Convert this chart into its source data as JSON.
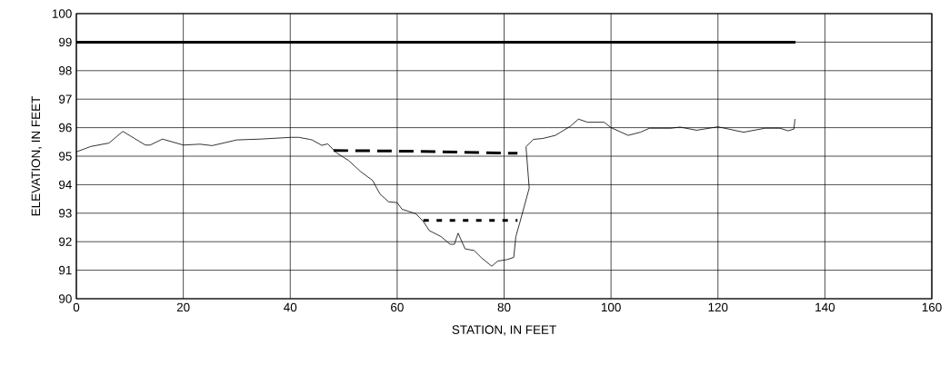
{
  "chart_data": {
    "type": "line",
    "xlabel": "STATION, IN FEET",
    "ylabel": "ELEVATION, IN FEET",
    "series": [
      {
        "color": "#000000",
        "x": [
          0,
          2.7,
          6.1,
          8.7,
          12.9,
          13.8,
          16.1,
          20.0,
          23.1,
          25.4,
          30.0,
          34.5,
          40.2,
          41.6,
          43.6,
          44.1,
          45.9,
          47.0,
          48.7,
          50.9,
          53.1,
          55.4,
          56.8,
          58.4,
          60.0,
          60.9,
          63.5,
          64.9,
          66.0,
          68.2,
          69.9,
          70.7,
          71.4,
          72.7,
          74.4,
          75.8,
          77.7,
          78.8,
          80.5,
          81.8,
          82.2,
          83.0,
          84.7,
          84.1,
          85.5,
          87.2,
          89.6,
          92.4,
          93.9,
          95.6,
          98.7,
          100.0,
          103.2,
          105.5,
          107.2,
          111.2,
          112.9,
          116.0,
          120.0,
          124.8,
          128.8,
          131.6,
          133.1,
          134.2,
          134.4
        ],
        "values": [
          95.15,
          95.34,
          95.46,
          95.87,
          95.39,
          95.39,
          95.6,
          95.39,
          95.42,
          95.37,
          95.57,
          95.6,
          95.66,
          95.66,
          95.59,
          95.57,
          95.38,
          95.43,
          95.11,
          94.85,
          94.47,
          94.15,
          93.67,
          93.4,
          93.37,
          93.14,
          92.98,
          92.71,
          92.39,
          92.18,
          91.91,
          91.91,
          92.3,
          91.75,
          91.69,
          91.43,
          91.14,
          91.32,
          91.37,
          91.45,
          92.18,
          92.71,
          93.88,
          95.33,
          95.59,
          95.62,
          95.73,
          96.05,
          96.3,
          96.19,
          96.19,
          96.0,
          95.73,
          95.84,
          95.98,
          95.98,
          96.02,
          95.91,
          96.03,
          95.84,
          95.98,
          95.98,
          95.89,
          95.95,
          96.3
        ]
      },
      {
        "color": "#000000",
        "line_style": "solid",
        "x": [
          0,
          134.5
        ],
        "values": [
          99,
          99
        ]
      },
      {
        "color": "#000000",
        "line_style": "dashed",
        "x": [
          48.1,
          64.3,
          82.5
        ],
        "values": [
          95.2,
          95.17,
          95.1
        ]
      },
      {
        "color": "#000000",
        "line_style": "dotted",
        "x": [
          64.9,
          82.5
        ],
        "values": [
          92.75,
          92.75
        ]
      }
    ],
    "xlim": [
      0,
      160
    ],
    "xticks": [
      0,
      20,
      40,
      60,
      80,
      100,
      120,
      140,
      160
    ],
    "ylim": [
      90,
      100
    ],
    "yticks": [
      90,
      91,
      92,
      93,
      94,
      95,
      96,
      97,
      98,
      99,
      100
    ],
    "grid": true,
    "marker": "none"
  }
}
